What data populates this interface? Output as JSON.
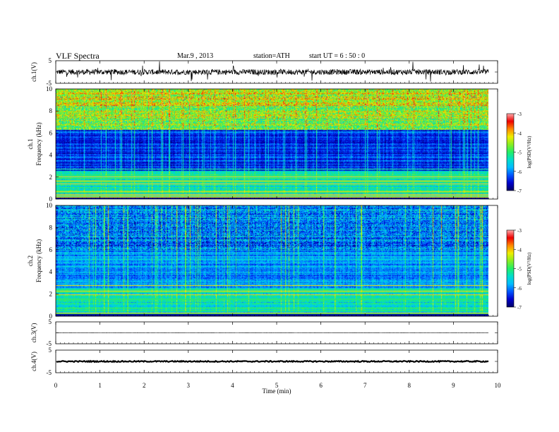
{
  "header": {
    "title": "VLF  Spectra",
    "date": "Mar.9  , 2013",
    "station": "station=ATH",
    "start": "start  UT  =   6  : 50 : 0"
  },
  "colors": {
    "spectrum": [
      "#000066",
      "#0000cc",
      "#0055ff",
      "#00bbff",
      "#00ddcc",
      "#22ee66",
      "#88ee22",
      "#eeee00",
      "#ff8800",
      "#ee0000",
      "#ffaaaa"
    ]
  },
  "chart_data": [
    {
      "type": "line",
      "panel": "ch1",
      "ylabel": "ch.1(V)",
      "ylim": [
        -5,
        5
      ],
      "yticks": [
        "5",
        "-5"
      ],
      "xlim": [
        0,
        10
      ],
      "note_values": {
        "baseline_V": 0,
        "noise_amplitude_V": 1.2,
        "data_end_min": 9.8
      }
    },
    {
      "type": "heatmap",
      "panel": "ch1-spectrogram",
      "ylabel": "Frequency  (kHz)",
      "channel_label": "ch.1",
      "ylim": [
        0,
        10
      ],
      "yticks": [
        "0",
        "2",
        "4",
        "6",
        "8",
        "10"
      ],
      "colorbar": {
        "label": "log(PSD(V²/Hz)",
        "ticks": [
          "-3",
          "-4",
          "-5",
          "-6",
          "-7"
        ],
        "range": [
          -7,
          -3
        ]
      }
    },
    {
      "type": "heatmap",
      "panel": "ch2-spectrogram",
      "ylabel": "Frequency  (kHz)",
      "channel_label": "ch.2",
      "ylim": [
        0,
        10
      ],
      "yticks": [
        "0",
        "2",
        "4",
        "6",
        "8",
        "10"
      ],
      "colorbar": {
        "label": "log(PSD(V²/Hz)",
        "ticks": [
          "-3",
          "-4",
          "-5",
          "-6",
          "-7"
        ],
        "range": [
          -7,
          -3
        ]
      }
    },
    {
      "type": "line",
      "panel": "ch3",
      "ylabel": "ch.3(V)",
      "ylim": [
        -5,
        5
      ],
      "yticks": [
        "5",
        "-5"
      ],
      "note_values": {
        "baseline_V": 0,
        "noise_amplitude_V": 0.05
      }
    },
    {
      "type": "line",
      "panel": "ch4",
      "ylabel": "ch.4(V)",
      "ylim": [
        -5,
        5
      ],
      "yticks": [
        "5",
        "-5"
      ],
      "note_values": {
        "baseline_V": 0,
        "noise_amplitude_V": 0.25
      }
    }
  ],
  "xaxis": {
    "label": "Time  (min)",
    "ticks": [
      "0",
      "1",
      "2",
      "3",
      "4",
      "5",
      "6",
      "7",
      "8",
      "9",
      "10"
    ],
    "range": [
      0,
      10
    ]
  }
}
